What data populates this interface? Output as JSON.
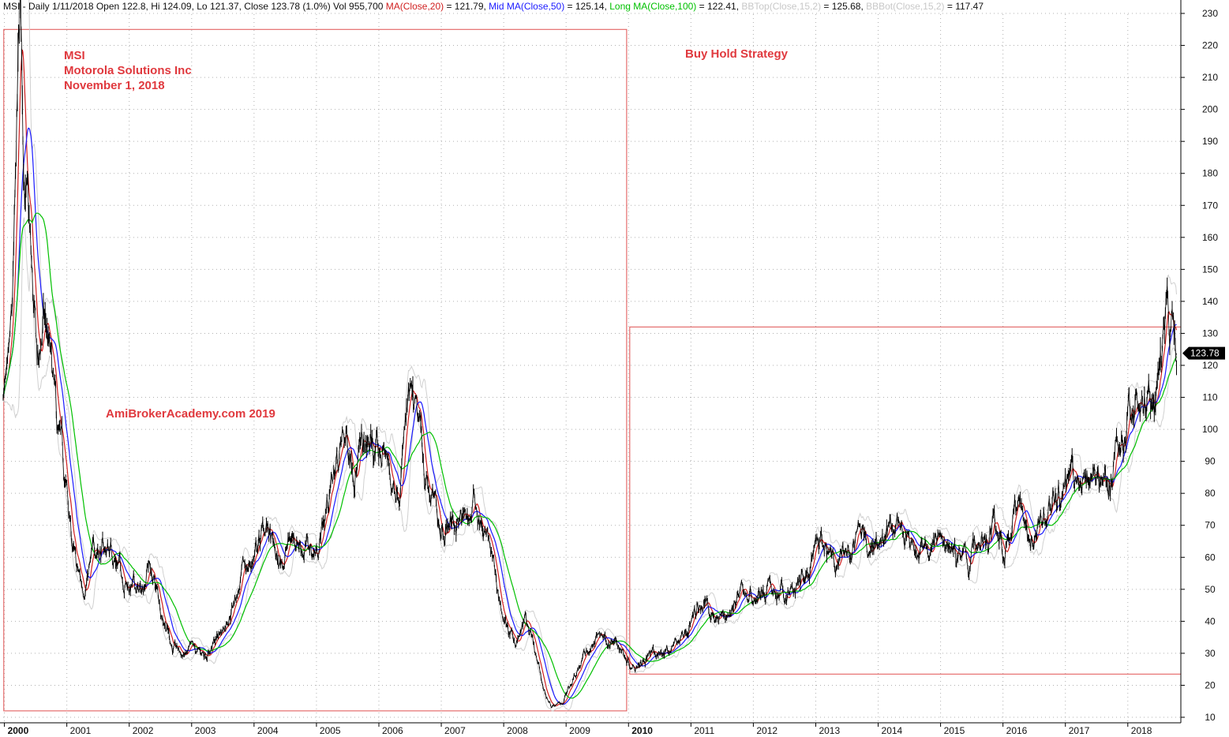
{
  "header": {
    "parts": [
      {
        "text": "MSI - Daily 1/11/2018 Open 122.8, Hi 124.09, Lo 121.37, Close 123.78 (1.0%) Vol 955,700 ",
        "color": "#111111"
      },
      {
        "text": "MA(Close,20)",
        "color": "#d02020"
      },
      {
        "text": " = 121.79, ",
        "color": "#111111"
      },
      {
        "text": "Mid MA(Close,50)",
        "color": "#1a1aff"
      },
      {
        "text": " = 125.14, ",
        "color": "#111111"
      },
      {
        "text": "Long MA(Close,100)",
        "color": "#00c000"
      },
      {
        "text": " = 122.41, ",
        "color": "#111111"
      },
      {
        "text": "BBTop(Close,15,2)",
        "color": "#c8c8c8"
      },
      {
        "text": " = 125.68, ",
        "color": "#111111"
      },
      {
        "text": "BBBot(Close,15,2)",
        "color": "#c8c8c8"
      },
      {
        "text": " = 117.47",
        "color": "#111111"
      }
    ]
  },
  "annotations": {
    "ticker": "MSI",
    "company": "Motorola Solutions Inc",
    "date": "November 1, 2018",
    "strategy": "Buy Hold Strategy",
    "watermark": "AmiBrokerAcademy.com  2019"
  },
  "price_badge": "123.78",
  "colors": {
    "price": "#000000",
    "ma20": "#d02020",
    "ma50": "#1a1aff",
    "ma100": "#00c000",
    "bollinger": "#d0d0d0",
    "annotation": "#e0393e",
    "box": "#e05050",
    "grid": "#b0b0b0"
  },
  "chart_data": {
    "type": "line",
    "ylim": [
      10,
      230
    ],
    "y_ticks": [
      10,
      20,
      30,
      40,
      50,
      60,
      70,
      80,
      90,
      100,
      110,
      120,
      130,
      140,
      150,
      160,
      170,
      180,
      190,
      200,
      210,
      220,
      230
    ],
    "xlim": [
      1999.98,
      2018.85
    ],
    "x_ticks": [
      {
        "year": 2000,
        "label": "2000",
        "bold": true
      },
      {
        "year": 2001,
        "label": "2001",
        "bold": false
      },
      {
        "year": 2002,
        "label": "2002",
        "bold": false
      },
      {
        "year": 2003,
        "label": "2003",
        "bold": false
      },
      {
        "year": 2004,
        "label": "2004",
        "bold": false
      },
      {
        "year": 2005,
        "label": "2005",
        "bold": false
      },
      {
        "year": 2006,
        "label": "2006",
        "bold": false
      },
      {
        "year": 2007,
        "label": "2007",
        "bold": false
      },
      {
        "year": 2008,
        "label": "2008",
        "bold": false
      },
      {
        "year": 2009,
        "label": "2009",
        "bold": false
      },
      {
        "year": 2010,
        "label": "2010",
        "bold": true
      },
      {
        "year": 2011,
        "label": "2011",
        "bold": false
      },
      {
        "year": 2012,
        "label": "2012",
        "bold": false
      },
      {
        "year": 2013,
        "label": "2013",
        "bold": false
      },
      {
        "year": 2014,
        "label": "2014",
        "bold": false
      },
      {
        "year": 2015,
        "label": "2015",
        "bold": false
      },
      {
        "year": 2016,
        "label": "2016",
        "bold": false
      },
      {
        "year": 2017,
        "label": "2017",
        "bold": false
      },
      {
        "year": 2018,
        "label": "2018",
        "bold": false
      }
    ],
    "grid": true,
    "price_series": {
      "name": "MSI",
      "points": [
        [
          1999.98,
          115
        ],
        [
          2000.05,
          108
        ],
        [
          2000.12,
          125
        ],
        [
          2000.18,
          165
        ],
        [
          2000.22,
          200
        ],
        [
          2000.26,
          222
        ],
        [
          2000.3,
          190
        ],
        [
          2000.36,
          170
        ],
        [
          2000.42,
          150
        ],
        [
          2000.48,
          128
        ],
        [
          2000.55,
          115
        ],
        [
          2000.62,
          132
        ],
        [
          2000.7,
          125
        ],
        [
          2000.78,
          110
        ],
        [
          2000.85,
          95
        ],
        [
          2000.92,
          88
        ],
        [
          2001.0,
          78
        ],
        [
          2001.08,
          65
        ],
        [
          2001.15,
          55
        ],
        [
          2001.25,
          50
        ],
        [
          2001.32,
          55
        ],
        [
          2001.4,
          58
        ],
        [
          2001.5,
          65
        ],
        [
          2001.6,
          62
        ],
        [
          2001.7,
          63
        ],
        [
          2001.8,
          60
        ],
        [
          2001.9,
          55
        ],
        [
          2002.0,
          52
        ],
        [
          2002.1,
          50
        ],
        [
          2002.2,
          48
        ],
        [
          2002.3,
          60
        ],
        [
          2002.4,
          52
        ],
        [
          2002.5,
          45
        ],
        [
          2002.6,
          40
        ],
        [
          2002.7,
          32
        ],
        [
          2002.8,
          30
        ],
        [
          2002.9,
          29
        ],
        [
          2003.0,
          30
        ],
        [
          2003.1,
          29
        ],
        [
          2003.2,
          30
        ],
        [
          2003.35,
          33
        ],
        [
          2003.5,
          38
        ],
        [
          2003.6,
          44
        ],
        [
          2003.7,
          48
        ],
        [
          2003.85,
          55
        ],
        [
          2004.0,
          60
        ],
        [
          2004.1,
          65
        ],
        [
          2004.2,
          70
        ],
        [
          2004.3,
          62
        ],
        [
          2004.4,
          56
        ],
        [
          2004.5,
          62
        ],
        [
          2004.6,
          66
        ],
        [
          2004.7,
          68
        ],
        [
          2004.8,
          64
        ],
        [
          2004.9,
          62
        ],
        [
          2005.0,
          62
        ],
        [
          2005.15,
          75
        ],
        [
          2005.3,
          88
        ],
        [
          2005.45,
          96
        ],
        [
          2005.6,
          95
        ],
        [
          2005.75,
          91
        ],
        [
          2005.9,
          94
        ],
        [
          2006.0,
          90
        ],
        [
          2006.1,
          93
        ],
        [
          2006.2,
          82
        ],
        [
          2006.3,
          85
        ],
        [
          2006.4,
          98
        ],
        [
          2006.5,
          105
        ],
        [
          2006.6,
          98
        ],
        [
          2006.7,
          92
        ],
        [
          2006.8,
          80
        ],
        [
          2006.9,
          74
        ],
        [
          2007.0,
          73
        ],
        [
          2007.15,
          72
        ],
        [
          2007.25,
          72
        ],
        [
          2007.35,
          70
        ],
        [
          2007.45,
          72
        ],
        [
          2007.55,
          78
        ],
        [
          2007.62,
          72
        ],
        [
          2007.75,
          64
        ],
        [
          2007.85,
          55
        ],
        [
          2007.95,
          45
        ],
        [
          2008.05,
          38
        ],
        [
          2008.15,
          33
        ],
        [
          2008.25,
          35
        ],
        [
          2008.35,
          40
        ],
        [
          2008.45,
          33
        ],
        [
          2008.55,
          25
        ],
        [
          2008.65,
          18
        ],
        [
          2008.75,
          14
        ],
        [
          2008.85,
          13
        ],
        [
          2008.95,
          15
        ],
        [
          2009.05,
          20
        ],
        [
          2009.15,
          25
        ],
        [
          2009.3,
          30
        ],
        [
          2009.45,
          33
        ],
        [
          2009.55,
          36
        ],
        [
          2009.65,
          35
        ],
        [
          2009.75,
          33
        ],
        [
          2009.85,
          32
        ],
        [
          2009.95,
          30
        ],
        [
          2010.05,
          27
        ],
        [
          2010.15,
          29
        ],
        [
          2010.3,
          30
        ],
        [
          2010.45,
          29
        ],
        [
          2010.6,
          31
        ],
        [
          2010.75,
          33
        ],
        [
          2010.85,
          35
        ],
        [
          2010.95,
          38
        ],
        [
          2011.05,
          42
        ],
        [
          2011.15,
          44
        ],
        [
          2011.25,
          46
        ],
        [
          2011.35,
          45
        ],
        [
          2011.45,
          40
        ],
        [
          2011.55,
          42
        ],
        [
          2011.65,
          45
        ],
        [
          2011.75,
          47
        ],
        [
          2011.85,
          48
        ],
        [
          2012.0,
          48
        ],
        [
          2012.15,
          50
        ],
        [
          2012.3,
          49
        ],
        [
          2012.45,
          48
        ],
        [
          2012.6,
          49
        ],
        [
          2012.75,
          52
        ],
        [
          2012.9,
          56
        ],
        [
          2013.0,
          60
        ],
        [
          2013.1,
          63
        ],
        [
          2013.2,
          58
        ],
        [
          2013.3,
          56
        ],
        [
          2013.45,
          58
        ],
        [
          2013.6,
          62
        ],
        [
          2013.75,
          66
        ],
        [
          2013.9,
          66
        ],
        [
          2014.05,
          66
        ],
        [
          2014.2,
          67
        ],
        [
          2014.35,
          65
        ],
        [
          2014.5,
          62
        ],
        [
          2014.6,
          60
        ],
        [
          2014.75,
          62
        ],
        [
          2014.9,
          65
        ],
        [
          2015.05,
          66
        ],
        [
          2015.15,
          64
        ],
        [
          2015.3,
          60
        ],
        [
          2015.45,
          58
        ],
        [
          2015.55,
          63
        ],
        [
          2015.7,
          68
        ],
        [
          2015.85,
          70
        ],
        [
          2016.0,
          65
        ],
        [
          2016.1,
          68
        ],
        [
          2016.2,
          75
        ],
        [
          2016.3,
          72
        ],
        [
          2016.4,
          68
        ],
        [
          2016.55,
          72
        ],
        [
          2016.7,
          77
        ],
        [
          2016.85,
          80
        ],
        [
          2016.95,
          82
        ],
        [
          2017.05,
          84
        ],
        [
          2017.2,
          82
        ],
        [
          2017.35,
          85
        ],
        [
          2017.5,
          88
        ],
        [
          2017.65,
          86
        ],
        [
          2017.75,
          88
        ],
        [
          2017.85,
          91
        ],
        [
          2017.95,
          97
        ],
        [
          2018.05,
          108
        ],
        [
          2018.15,
          110
        ],
        [
          2018.25,
          108
        ],
        [
          2018.35,
          112
        ],
        [
          2018.45,
          116
        ],
        [
          2018.55,
          124
        ],
        [
          2018.65,
          130
        ],
        [
          2018.72,
          126
        ],
        [
          2018.78,
          123.78
        ]
      ]
    },
    "moving_averages": [
      {
        "name": "MA(Close,20)",
        "window": 20,
        "color": "#d02020"
      },
      {
        "name": "Mid MA(Close,50)",
        "window": 50,
        "color": "#1a1aff"
      },
      {
        "name": "Long MA(Close,100)",
        "window": 100,
        "color": "#00c000"
      }
    ],
    "boxes": [
      {
        "x0": 1999.99,
        "x1": 2009.97,
        "y0": 12,
        "y1": 225
      },
      {
        "x0": 2010.02,
        "x1": 2018.85,
        "y0": 23.5,
        "y1": 132
      }
    ],
    "last_close": 123.78
  }
}
